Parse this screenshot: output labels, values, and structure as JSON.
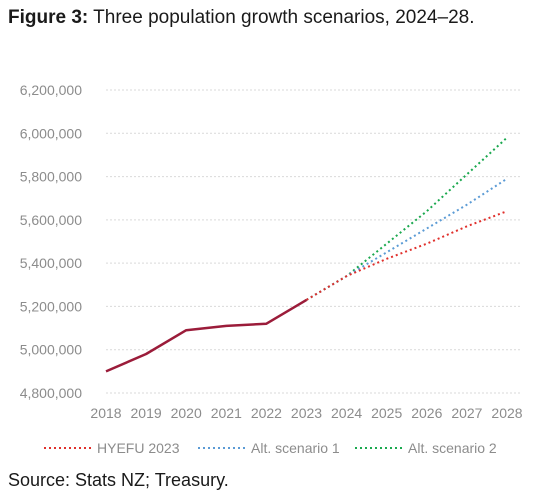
{
  "title": {
    "prefix": "Figure 3:",
    "text": " Three population growth scenarios, 2024–28."
  },
  "source": "Source: Stats NZ; Treasury.",
  "colors": {
    "history": "#9b1c3a",
    "hyefu": "#e0302c",
    "alt1": "#5b9bd5",
    "alt2": "#1aa84e",
    "grid": "#d9d9d9",
    "tick_text": "#8c8c8c"
  },
  "chart_data": {
    "type": "line",
    "x": [
      2018,
      2019,
      2020,
      2021,
      2022,
      2023,
      2024,
      2025,
      2026,
      2027,
      2028
    ],
    "xtick_labels": [
      "2018",
      "2019",
      "2020",
      "2021",
      "2022",
      "2023",
      "2024",
      "2025",
      "2026",
      "2027",
      "2028"
    ],
    "ylim": [
      4800000,
      6200000
    ],
    "yticks": [
      4800000,
      5000000,
      5200000,
      5400000,
      5600000,
      5800000,
      6000000,
      6200000
    ],
    "ytick_labels": [
      "4,800,000",
      "5,000,000",
      "5,200,000",
      "5,400,000",
      "5,600,000",
      "5,800,000",
      "6,000,000",
      "6,200,000"
    ],
    "grid": "horizontal",
    "legend_position": "bottom",
    "history": {
      "x": [
        2018,
        2019,
        2020,
        2021,
        2022,
        2023
      ],
      "values": [
        4900000,
        4980000,
        5090000,
        5110000,
        5120000,
        5230000
      ],
      "style": "solid"
    },
    "series": [
      {
        "name": "HYEFU 2023",
        "key": "hyefu",
        "x": [
          2023,
          2024,
          2025,
          2026,
          2027,
          2028
        ],
        "values": [
          5230000,
          5340000,
          5420000,
          5490000,
          5570000,
          5640000
        ],
        "style": "dotted"
      },
      {
        "name": "Alt. scenario 1",
        "key": "alt1",
        "x": [
          2023,
          2024,
          2025,
          2026,
          2027,
          2028
        ],
        "values": [
          5230000,
          5340000,
          5450000,
          5560000,
          5670000,
          5790000
        ],
        "style": "dotted"
      },
      {
        "name": "Alt. scenario 2",
        "key": "alt2",
        "x": [
          2023,
          2024,
          2025,
          2026,
          2027,
          2028
        ],
        "values": [
          5230000,
          5340000,
          5490000,
          5640000,
          5810000,
          5980000
        ],
        "style": "dotted"
      }
    ]
  }
}
